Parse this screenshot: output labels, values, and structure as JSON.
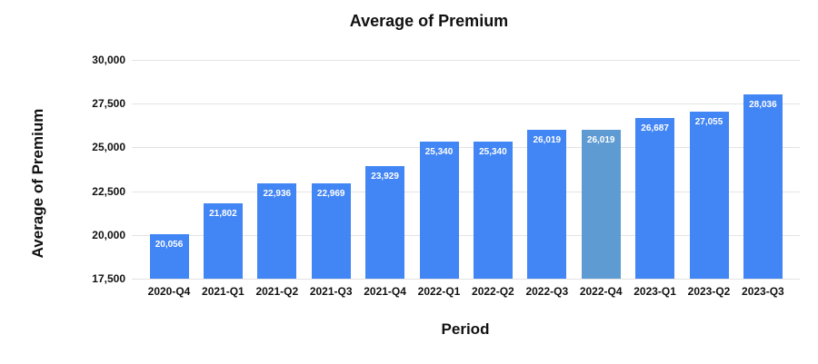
{
  "chart_data": {
    "type": "bar",
    "title": "Average of Premium",
    "xlabel": "Period",
    "ylabel": "Average of Premium",
    "categories": [
      "2020-Q4",
      "2021-Q1",
      "2021-Q2",
      "2021-Q3",
      "2021-Q4",
      "2022-Q1",
      "2022-Q2",
      "2022-Q3",
      "2022-Q4",
      "2023-Q1",
      "2023-Q2",
      "2023-Q3"
    ],
    "values": [
      20056,
      21802,
      22936,
      22969,
      23929,
      25340,
      25340,
      26019,
      26019,
      26687,
      27055,
      28036
    ],
    "value_labels": [
      "20,056",
      "21,802",
      "22,936",
      "22,969",
      "23,929",
      "25,340",
      "25,340",
      "26,019",
      "26,019",
      "26,687",
      "27,055",
      "28,036"
    ],
    "ylim": [
      17500,
      30000
    ],
    "ytick_values": [
      17500,
      20000,
      22500,
      25000,
      27500,
      30000
    ],
    "ytick_labels": [
      "17,500",
      "20,000",
      "22,500",
      "25,000",
      "27,500",
      "30,000"
    ],
    "highlighted_index": 8,
    "grid": true,
    "legend": "none",
    "colors": {
      "bar": "#4285f4",
      "bar_highlighted": "#5e9bd3",
      "gridline": "#e3e3e3",
      "data_label": "#ffffff",
      "text": "#111111",
      "background": "#ffffff"
    }
  }
}
